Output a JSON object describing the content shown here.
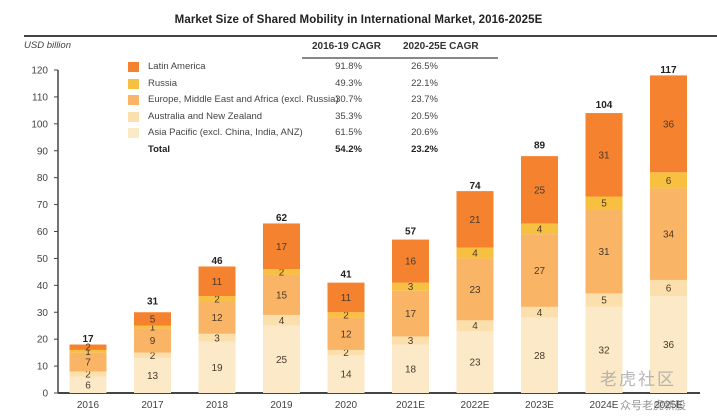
{
  "chart_data": {
    "type": "bar",
    "stacked": true,
    "title": "Market Size of Shared Mobility in International Market,  2016-2025E",
    "ylabel": "USD billion",
    "xlabel": "",
    "ylim": [
      0,
      120
    ],
    "yticks": [
      0,
      10,
      20,
      30,
      40,
      50,
      60,
      70,
      80,
      90,
      100,
      110,
      120
    ],
    "grid": false,
    "legend_position": "top-left",
    "categories": [
      "2016",
      "2017",
      "2018",
      "2019",
      "2020",
      "2021E",
      "2022E",
      "2023E",
      "2024E",
      "2025E"
    ],
    "series": [
      {
        "name": "Asia Pacific (excl. China, India, ANZ)",
        "color": "#fce9c8",
        "values": [
          6,
          13,
          19,
          25,
          14,
          18,
          23,
          28,
          32,
          36
        ]
      },
      {
        "name": "Australia and New Zealand",
        "color": "#fbe0ad",
        "values": [
          2,
          2,
          3,
          4,
          2,
          3,
          4,
          4,
          5,
          6
        ]
      },
      {
        "name": "Europe, Middle East and Africa (excl. Russia)",
        "color": "#f9b466",
        "values": [
          7,
          9,
          12,
          15,
          12,
          17,
          23,
          27,
          31,
          34
        ]
      },
      {
        "name": "Russia",
        "color": "#f8c040",
        "values": [
          1,
          1,
          2,
          2,
          2,
          3,
          4,
          4,
          5,
          6
        ]
      },
      {
        "name": "Latin America",
        "color": "#f5822e",
        "values": [
          2,
          5,
          11,
          17,
          11,
          16,
          21,
          25,
          31,
          36
        ]
      }
    ],
    "totals": [
      17,
      31,
      46,
      62,
      41,
      57,
      74,
      89,
      104,
      117
    ],
    "cagr_table": {
      "headers": [
        "2016-19 CAGR",
        "2020-25E CAGR"
      ],
      "rows": [
        {
          "name": "Latin America",
          "cagr_2016_19": "91.8%",
          "cagr_2020_25": "26.5%",
          "color": "#f5822e"
        },
        {
          "name": "Russia",
          "cagr_2016_19": "49.3%",
          "cagr_2020_25": "22.1%",
          "color": "#f8c040"
        },
        {
          "name": "Europe, Middle East and Africa (excl. Russia)",
          "cagr_2016_19": "30.7%",
          "cagr_2020_25": "23.7%",
          "color": "#f9b466"
        },
        {
          "name": "Australia and New Zealand",
          "cagr_2016_19": "35.3%",
          "cagr_2020_25": "20.5%",
          "color": "#fbe0ad"
        },
        {
          "name": "Asia Pacific (excl. China, India, ANZ)",
          "cagr_2016_19": "61.5%",
          "cagr_2020_25": "20.6%",
          "color": "#fce9c8"
        }
      ],
      "total": {
        "name": "Total",
        "cagr_2016_19": "54.2%",
        "cagr_2020_25": "23.2%"
      }
    }
  },
  "watermark": {
    "main": "老虎社区",
    "sub": "众号老虎新股"
  }
}
